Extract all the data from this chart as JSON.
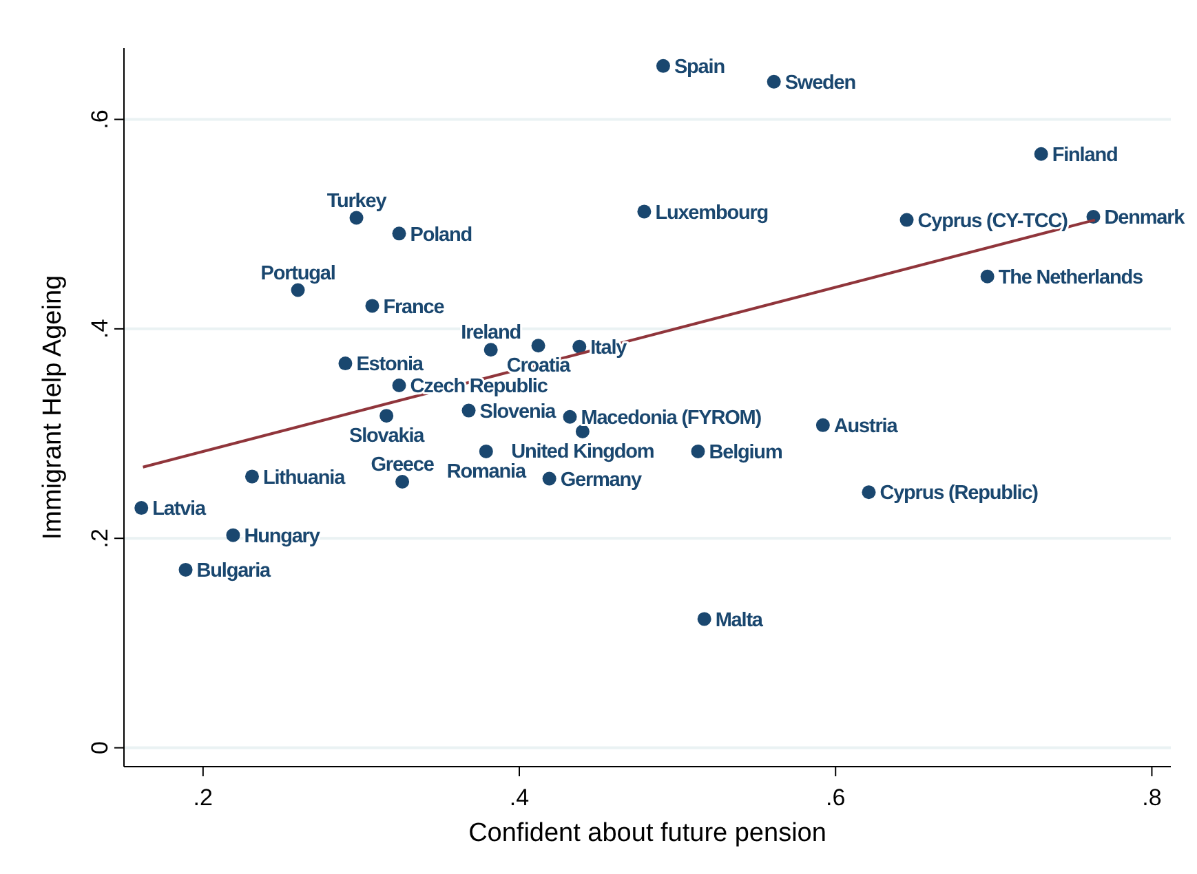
{
  "chart_data": {
    "type": "scatter",
    "xlabel": "Confident about future pension",
    "ylabel": "Immigrant Help Ageing",
    "xlim": [
      0.15,
      0.812
    ],
    "ylim": [
      -0.018,
      0.668
    ],
    "xticks": [
      {
        "value": 0.2,
        "label": ".2"
      },
      {
        "value": 0.4,
        "label": ".4"
      },
      {
        "value": 0.6,
        "label": ".6"
      },
      {
        "value": 0.8,
        "label": ".8"
      }
    ],
    "yticks": [
      0,
      {
        "value": 0.2,
        "label": ".2"
      },
      {
        "value": 0.4,
        "label": ".4"
      },
      {
        "value": 0.6,
        "label": ".6"
      }
    ],
    "grid": "y",
    "marker": "circle",
    "series": [
      {
        "name": "Spain",
        "color": "#1a476f",
        "x": [
          0.491
        ],
        "values": [
          0.651
        ]
      },
      {
        "name": "Sweden",
        "color": "#1a476f",
        "x": [
          0.561
        ],
        "values": [
          0.636
        ]
      },
      {
        "name": "Finland",
        "color": "#1a476f",
        "x": [
          0.73
        ],
        "values": [
          0.567
        ]
      },
      {
        "name": "Luxembourg",
        "color": "#1a476f",
        "x": [
          0.479
        ],
        "values": [
          0.512
        ]
      },
      {
        "name": "Cyprus (CY-TCC)",
        "color": "#1a476f",
        "x": [
          0.645
        ],
        "values": [
          0.504
        ]
      },
      {
        "name": "Denmark",
        "color": "#1a476f",
        "x": [
          0.763
        ],
        "values": [
          0.507
        ]
      },
      {
        "name": "The Netherlands",
        "color": "#1a476f",
        "x": [
          0.696
        ],
        "values": [
          0.45
        ]
      },
      {
        "name": "Turkey",
        "color": "#1a476f",
        "x": [
          0.297
        ],
        "values": [
          0.506
        ]
      },
      {
        "name": "Poland",
        "color": "#1a476f",
        "x": [
          0.324
        ],
        "values": [
          0.491
        ]
      },
      {
        "name": "Portugal",
        "color": "#1a476f",
        "x": [
          0.26
        ],
        "values": [
          0.437
        ]
      },
      {
        "name": "France",
        "color": "#1a476f",
        "x": [
          0.307
        ],
        "values": [
          0.422
        ]
      },
      {
        "name": "Ireland",
        "color": "#1a476f",
        "x": [
          0.382
        ],
        "values": [
          0.38
        ]
      },
      {
        "name": "Croatia",
        "color": "#1a476f",
        "x": [
          0.412
        ],
        "values": [
          0.384
        ]
      },
      {
        "name": "Italy",
        "color": "#1a476f",
        "x": [
          0.438
        ],
        "values": [
          0.383
        ]
      },
      {
        "name": "Estonia",
        "color": "#1a476f",
        "x": [
          0.29
        ],
        "values": [
          0.367
        ]
      },
      {
        "name": "Czech Republic",
        "color": "#1a476f",
        "x": [
          0.324
        ],
        "values": [
          0.346
        ]
      },
      {
        "name": "Slovakia",
        "color": "#1a476f",
        "x": [
          0.316
        ],
        "values": [
          0.317
        ]
      },
      {
        "name": "Slovenia",
        "color": "#1a476f",
        "x": [
          0.368
        ],
        "values": [
          0.322
        ]
      },
      {
        "name": "Macedonia (FYROM)",
        "color": "#1a476f",
        "x": [
          0.432
        ],
        "values": [
          0.316
        ]
      },
      {
        "name": "United Kingdom",
        "color": "#1a476f",
        "x": [
          0.44
        ],
        "values": [
          0.302
        ]
      },
      {
        "name": "Austria",
        "color": "#1a476f",
        "x": [
          0.592
        ],
        "values": [
          0.308
        ]
      },
      {
        "name": "Romania",
        "color": "#1a476f",
        "x": [
          0.379
        ],
        "values": [
          0.283
        ]
      },
      {
        "name": "Belgium",
        "color": "#1a476f",
        "x": [
          0.513
        ],
        "values": [
          0.283
        ]
      },
      {
        "name": "Lithuania",
        "color": "#1a476f",
        "x": [
          0.231
        ],
        "values": [
          0.259
        ]
      },
      {
        "name": "Greece",
        "color": "#1a476f",
        "x": [
          0.326
        ],
        "values": [
          0.254
        ]
      },
      {
        "name": "Germany",
        "color": "#1a476f",
        "x": [
          0.419
        ],
        "values": [
          0.257
        ]
      },
      {
        "name": "Cyprus (Republic)",
        "color": "#1a476f",
        "x": [
          0.621
        ],
        "values": [
          0.244
        ]
      },
      {
        "name": "Latvia",
        "color": "#1a476f",
        "x": [
          0.161
        ],
        "values": [
          0.229
        ]
      },
      {
        "name": "Hungary",
        "color": "#1a476f",
        "x": [
          0.219
        ],
        "values": [
          0.203
        ]
      },
      {
        "name": "Bulgaria",
        "color": "#1a476f",
        "x": [
          0.189
        ],
        "values": [
          0.17
        ]
      },
      {
        "name": "Malta",
        "color": "#1a476f",
        "x": [
          0.517
        ],
        "values": [
          0.123
        ]
      },
      {
        "type": "line",
        "marker": "none",
        "color": "#90353b",
        "x": [
          0.162,
          0.764
        ],
        "values": [
          0.268,
          0.504
        ]
      }
    ]
  }
}
